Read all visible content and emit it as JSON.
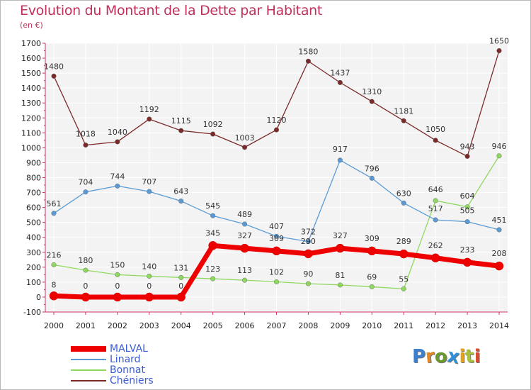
{
  "page": {
    "title": "Evolution du Montant de la Dette par Habitant",
    "unit": "(en €)",
    "logo": "Proxiti"
  },
  "chart_data": {
    "type": "line",
    "title": "Evolution du Montant de la Dette par Habitant",
    "ylabel": "(en €)",
    "xlabel": "",
    "x": [
      2000,
      2001,
      2002,
      2003,
      2004,
      2005,
      2006,
      2007,
      2008,
      2009,
      2010,
      2011,
      2012,
      2013,
      2014
    ],
    "ylim": [
      -100,
      1700
    ],
    "yticks": [
      -100,
      0,
      100,
      200,
      300,
      400,
      500,
      600,
      700,
      800,
      900,
      1000,
      1100,
      1200,
      1300,
      1400,
      1500,
      1600,
      1700
    ],
    "grid": true,
    "legend_position": "bottom-left",
    "series": [
      {
        "name": "MALVAL",
        "color": "#ee0000",
        "values": [
          8,
          0,
          0,
          0,
          0,
          345,
          327,
          309,
          290,
          327,
          309,
          289,
          262,
          233,
          208
        ]
      },
      {
        "name": "Linard",
        "color": "#5b9bd5",
        "values": [
          561,
          704,
          744,
          707,
          643,
          545,
          489,
          407,
          372,
          917,
          796,
          630,
          517,
          505,
          451
        ]
      },
      {
        "name": "Bonnat",
        "color": "#8fd860",
        "values": [
          216,
          180,
          150,
          140,
          131,
          123,
          113,
          102,
          90,
          81,
          69,
          55,
          646,
          604,
          946
        ]
      },
      {
        "name": "Chéniers",
        "color": "#7b2a2a",
        "values": [
          1480,
          1018,
          1040,
          1192,
          1115,
          1092,
          1003,
          1120,
          1580,
          1437,
          1310,
          1181,
          1050,
          943,
          1650
        ]
      }
    ]
  }
}
